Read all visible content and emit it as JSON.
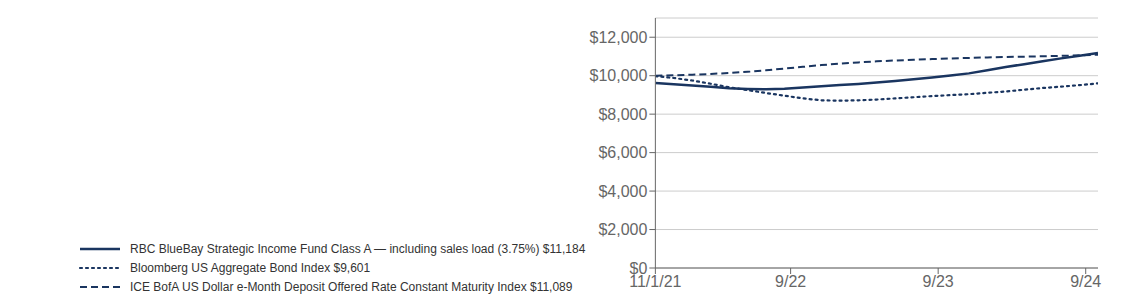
{
  "chart_data": {
    "type": "line",
    "x": [
      0,
      1.5,
      3,
      4.5,
      6,
      7.5,
      9,
      10.5,
      12,
      13.5,
      15,
      16.5,
      18,
      19.5,
      21,
      22.5,
      24,
      25.5,
      27,
      28.5,
      30,
      31.5,
      33,
      34.5,
      36
    ],
    "xlim": [
      0,
      36
    ],
    "xticks": [
      {
        "value": 0,
        "label": "11/1/21"
      },
      {
        "value": 11,
        "label": "9/22"
      },
      {
        "value": 23,
        "label": "9/23"
      },
      {
        "value": 35,
        "label": "9/24"
      }
    ],
    "ylim": [
      0,
      13000
    ],
    "yticks": [
      {
        "value": 0,
        "label": "$0"
      },
      {
        "value": 2000,
        "label": "$2,000"
      },
      {
        "value": 4000,
        "label": "$4,000"
      },
      {
        "value": 6000,
        "label": "$6,000"
      },
      {
        "value": 8000,
        "label": "$8,000"
      },
      {
        "value": 10000,
        "label": "$10,000"
      },
      {
        "value": 12000,
        "label": "$12,000"
      }
    ],
    "grid": true,
    "legend": "bottom",
    "series": [
      {
        "name": "RBC BlueBay Strategic Income Fund Class A — including sales load (3.75%) $11,184",
        "color": "#1a3560",
        "line_style": "solid",
        "values": [
          9625,
          9560,
          9490,
          9420,
          9350,
          9310,
          9290,
          9320,
          9380,
          9450,
          9510,
          9570,
          9650,
          9730,
          9820,
          9910,
          10010,
          10120,
          10280,
          10450,
          10600,
          10750,
          10900,
          11040,
          11184
        ]
      },
      {
        "name": "Bloomberg US Aggregate Bond Index $9,601",
        "color": "#1a3560",
        "line_style": "dotted",
        "values": [
          9980,
          9880,
          9750,
          9580,
          9400,
          9250,
          9100,
          8960,
          8820,
          8720,
          8700,
          8720,
          8760,
          8820,
          8880,
          8940,
          8990,
          9040,
          9110,
          9180,
          9270,
          9360,
          9430,
          9510,
          9601
        ]
      },
      {
        "name": "ICE BofA US Dollar e-Month Deposit Offered Rate Constant Maturity Index $11,089",
        "color": "#1a3560",
        "line_style": "dashed",
        "values": [
          10000,
          10020,
          10050,
          10090,
          10140,
          10200,
          10280,
          10370,
          10460,
          10550,
          10630,
          10690,
          10745,
          10790,
          10830,
          10865,
          10895,
          10925,
          10950,
          10972,
          10990,
          11010,
          11030,
          11060,
          11089
        ]
      }
    ]
  }
}
